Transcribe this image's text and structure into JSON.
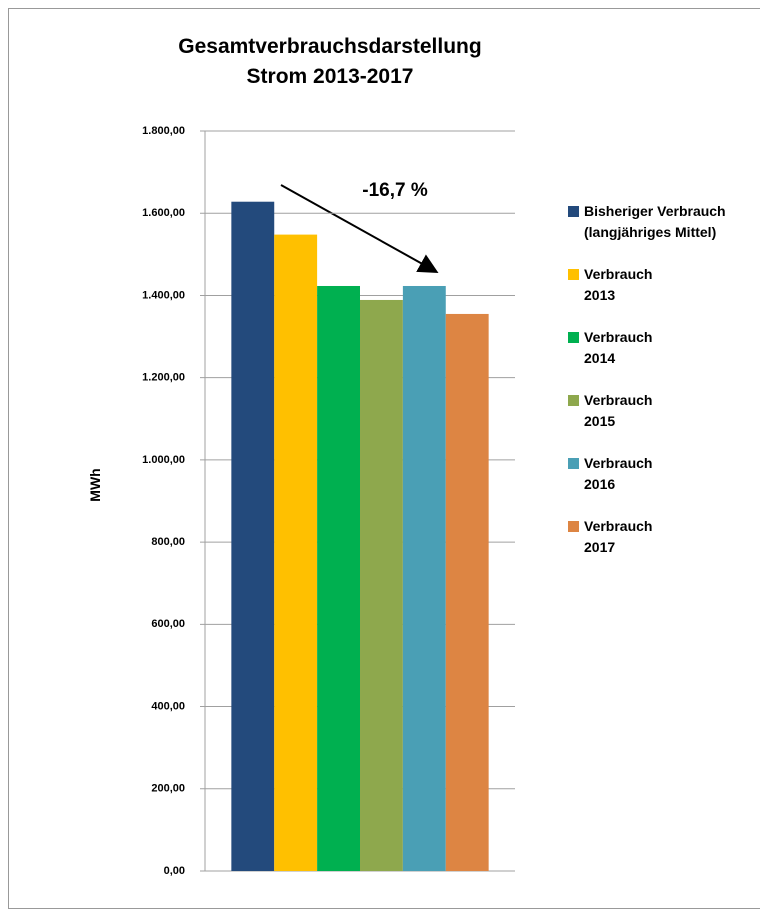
{
  "chart_data": {
    "type": "bar",
    "title": "Gesamtverbrauchsdarstellung\nStrom 2013-2017",
    "ylabel": "MWh",
    "annotation": "-16,7 %",
    "categories": [
      null
    ],
    "series": [
      {
        "name": "Bisheriger Verbrauch\n(langjähriges Mittel)",
        "color": "#234a7c",
        "values": [
          1628
        ]
      },
      {
        "name": "Verbrauch\n2013",
        "color": "#ffc000",
        "values": [
          1548
        ]
      },
      {
        "name": "Verbrauch\n2014",
        "color": "#00b050",
        "values": [
          1423
        ]
      },
      {
        "name": "Verbrauch\n2015",
        "color": "#8ea84d",
        "values": [
          1389
        ]
      },
      {
        "name": "Verbrauch\n2016",
        "color": "#4a9fb5",
        "values": [
          1423
        ]
      },
      {
        "name": "Verbrauch\n2017",
        "color": "#dd8543",
        "values": [
          1355
        ]
      }
    ],
    "ylim": [
      0,
      1800
    ],
    "yticks": [
      {
        "value": 0,
        "label": "0,00"
      },
      {
        "value": 200,
        "label": "200,00"
      },
      {
        "value": 400,
        "label": "400,00"
      },
      {
        "value": 600,
        "label": "600,00"
      },
      {
        "value": 800,
        "label": "800,00"
      },
      {
        "value": 1000,
        "label": "1.000,00"
      },
      {
        "value": 1200,
        "label": "1.200,00"
      },
      {
        "value": 1400,
        "label": "1.400,00"
      },
      {
        "value": 1600,
        "label": "1.600,00"
      },
      {
        "value": 1800,
        "label": "1.800,00"
      }
    ],
    "grid": true,
    "legend": "right"
  }
}
